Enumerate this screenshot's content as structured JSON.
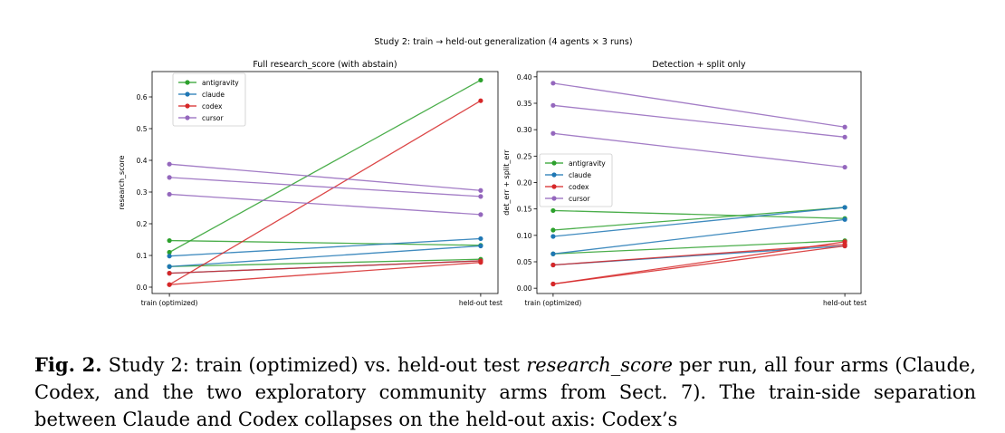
{
  "figure": {
    "suptitle": "Study 2: train → held-out generalization (4 agents × 3 runs)"
  },
  "colors": {
    "antigravity": "#2ca02c",
    "claude": "#1f77b4",
    "codex": "#d62728",
    "cursor": "#9467bd",
    "axis": "#000000",
    "grid": "#cccccc"
  },
  "chart_data": [
    {
      "type": "line",
      "title": "Full research_score (with abstain)",
      "xlabel": "",
      "ylabel": "research_score",
      "categories": [
        "train (optimized)",
        "held-out test"
      ],
      "ylim": [
        -0.02,
        0.68
      ],
      "yticks": [
        "0.0",
        "0.1",
        "0.2",
        "0.3",
        "0.4",
        "0.5",
        "0.6"
      ],
      "legend": "top-left",
      "legend_entries": [
        "antigravity",
        "claude",
        "codex",
        "cursor"
      ],
      "series": [
        {
          "name": "antigravity",
          "runs": [
            [
              0.147,
              0.132
            ],
            [
              0.11,
              0.653
            ],
            [
              0.065,
              0.088
            ]
          ]
        },
        {
          "name": "claude",
          "runs": [
            [
              0.098,
              0.153
            ],
            [
              0.065,
              0.13
            ],
            [
              0.044,
              0.083
            ]
          ]
        },
        {
          "name": "codex",
          "runs": [
            [
              0.008,
              0.588
            ],
            [
              0.044,
              0.083
            ],
            [
              0.008,
              0.078
            ]
          ]
        },
        {
          "name": "cursor",
          "runs": [
            [
              0.388,
              0.305
            ],
            [
              0.346,
              0.286
            ],
            [
              0.293,
              0.229
            ]
          ]
        }
      ]
    },
    {
      "type": "line",
      "title": "Detection + split only",
      "xlabel": "",
      "ylabel": "det_err + split_err",
      "categories": [
        "train (optimized)",
        "held-out test"
      ],
      "ylim": [
        -0.01,
        0.41
      ],
      "yticks": [
        "0.00",
        "0.05",
        "0.10",
        "0.15",
        "0.20",
        "0.25",
        "0.30",
        "0.35",
        "0.40"
      ],
      "legend": "center-left",
      "legend_entries": [
        "antigravity",
        "claude",
        "codex",
        "cursor"
      ],
      "series": [
        {
          "name": "antigravity",
          "runs": [
            [
              0.147,
              0.132
            ],
            [
              0.11,
              0.153
            ],
            [
              0.065,
              0.09
            ]
          ]
        },
        {
          "name": "claude",
          "runs": [
            [
              0.098,
              0.153
            ],
            [
              0.065,
              0.13
            ],
            [
              0.044,
              0.08
            ]
          ]
        },
        {
          "name": "codex",
          "runs": [
            [
              0.008,
              0.088
            ],
            [
              0.044,
              0.083
            ],
            [
              0.008,
              0.08
            ]
          ]
        },
        {
          "name": "cursor",
          "runs": [
            [
              0.388,
              0.305
            ],
            [
              0.346,
              0.286
            ],
            [
              0.293,
              0.229
            ]
          ]
        }
      ]
    }
  ],
  "caption": {
    "label": "Fig. 2.",
    "text_before": " Study 2: train (optimized) vs. held-out test ",
    "metric": "research_score",
    "text_after": " per run, all four arms (Claude, Codex, and the two exploratory community arms from Sect. 7). The train-side separation between Claude and Codex collapses on the held-out axis: Codex’s"
  }
}
